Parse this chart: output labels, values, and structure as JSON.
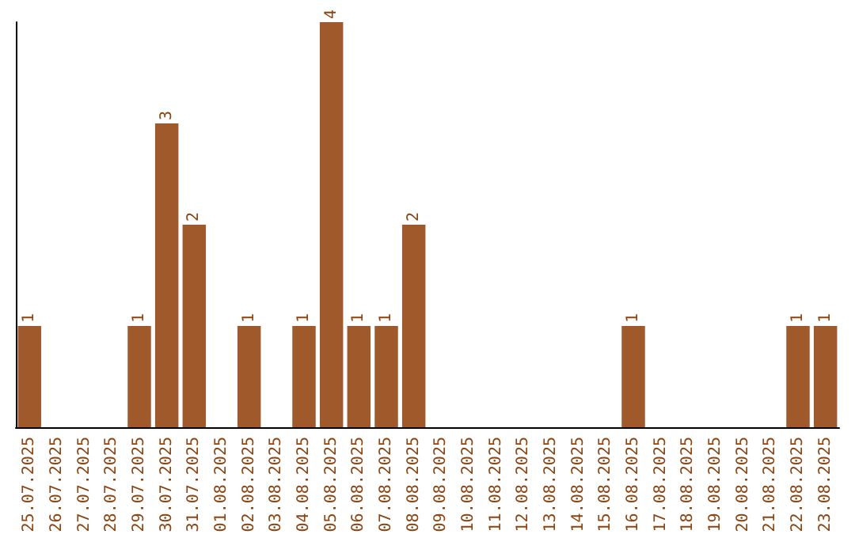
{
  "chart_data": {
    "type": "bar",
    "categories": [
      "25.07.2025",
      "26.07.2025",
      "27.07.2025",
      "28.07.2025",
      "29.07.2025",
      "30.07.2025",
      "31.07.2025",
      "01.08.2025",
      "02.08.2025",
      "03.08.2025",
      "04.08.2025",
      "05.08.2025",
      "06.08.2025",
      "07.08.2025",
      "08.08.2025",
      "09.08.2025",
      "10.08.2025",
      "11.08.2025",
      "12.08.2025",
      "13.08.2025",
      "14.08.2025",
      "15.08.2025",
      "16.08.2025",
      "17.08.2025",
      "18.08.2025",
      "19.08.2025",
      "20.08.2025",
      "21.08.2025",
      "22.08.2025",
      "23.08.2025"
    ],
    "values": [
      1,
      0,
      0,
      0,
      1,
      3,
      2,
      0,
      1,
      0,
      1,
      4,
      1,
      1,
      2,
      0,
      0,
      0,
      0,
      0,
      0,
      0,
      1,
      0,
      0,
      0,
      0,
      0,
      1,
      1
    ],
    "value_labels": [
      "1",
      null,
      null,
      null,
      "1",
      "3",
      "2",
      null,
      "1",
      null,
      "1",
      "4",
      "1",
      "1",
      "2",
      null,
      null,
      null,
      null,
      null,
      null,
      null,
      "1",
      null,
      null,
      null,
      null,
      null,
      "1",
      "1"
    ],
    "color": "#a0592b",
    "tick_labels": "x"
  }
}
